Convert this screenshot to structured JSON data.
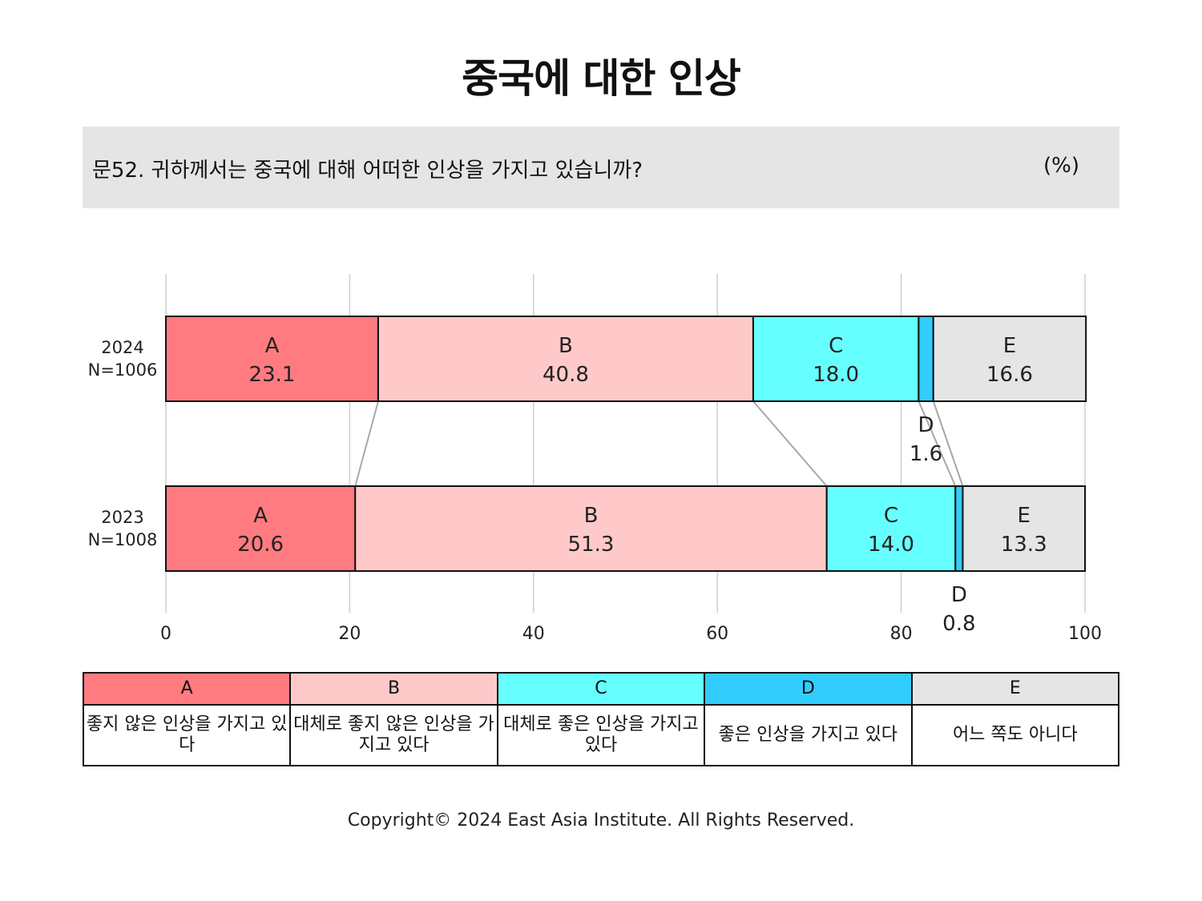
{
  "title": "중국에 대한 인상",
  "question": {
    "text": "문52. 귀하께서는 중국에 대해 어떠한 인상을 가지고 있습니까?",
    "unit": "(%)"
  },
  "chart_data": {
    "type": "bar",
    "orientation": "horizontal",
    "stacked": true,
    "categories": [
      "A",
      "B",
      "C",
      "D",
      "E"
    ],
    "xlim": [
      0,
      100
    ],
    "xticks": [
      0,
      20,
      40,
      60,
      80,
      100
    ],
    "grid": true,
    "rows": [
      {
        "year": "2024",
        "n": "N=1006",
        "values": [
          23.1,
          40.8,
          18.0,
          1.6,
          16.6
        ]
      },
      {
        "year": "2023",
        "n": "N=1008",
        "values": [
          20.6,
          51.3,
          14.0,
          0.8,
          13.3
        ]
      }
    ],
    "colors": [
      "#ff7b80",
      "#ffc9c9",
      "#66ffff",
      "#33ccff",
      "#e6e5e6"
    ]
  },
  "legend": [
    {
      "key": "A",
      "label": "좋지 않은 인상을 가지고 있다",
      "color": "#ff7b80"
    },
    {
      "key": "B",
      "label": "대체로 좋지 않은 인상을 가지고 있다",
      "color": "#ffc9c9"
    },
    {
      "key": "C",
      "label": "대체로 좋은 인상을 가지고 있다",
      "color": "#66ffff"
    },
    {
      "key": "D",
      "label": "좋은 인상을 가지고 있다",
      "color": "#33ccff"
    },
    {
      "key": "E",
      "label": "어느 쪽도 아니다",
      "color": "#e6e5e6"
    }
  ],
  "copyright": "Copyright© 2024 East Asia Institute. All Rights Reserved."
}
